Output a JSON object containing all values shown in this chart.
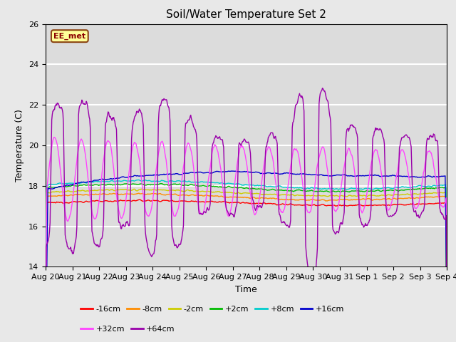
{
  "title": "Soil/Water Temperature Set 2",
  "xlabel": "Time",
  "ylabel": "Temperature (C)",
  "ylim": [
    14,
    26
  ],
  "yticks": [
    14,
    16,
    18,
    20,
    22,
    24,
    26
  ],
  "annotation_text": "EE_met",
  "annotation_color": "#8B0000",
  "annotation_bg": "#FFFF99",
  "annotation_border": "#8B4513",
  "background_color": "#E8E8E8",
  "plot_bg": "#DCDCDC",
  "n_days": 15,
  "start_day": 20,
  "colors": {
    "-16cm": "#FF0000",
    "-8cm": "#FF8C00",
    "-2cm": "#CCCC00",
    "+2cm": "#00BB00",
    "+8cm": "#00CCCC",
    "+16cm": "#0000CC",
    "+32cm": "#FF44FF",
    "+64cm": "#9900AA"
  }
}
